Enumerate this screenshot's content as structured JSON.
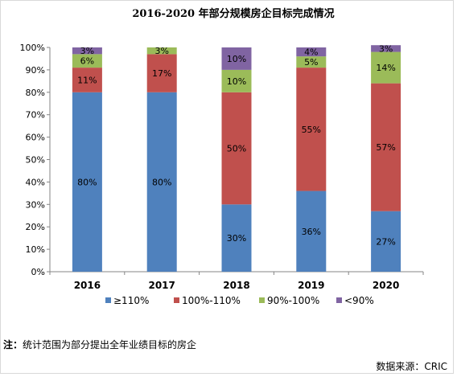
{
  "chart_data": {
    "type": "bar",
    "stacked": true,
    "percent": true,
    "title": "2016-2020 年部分规模房企目标完成情况",
    "categories": [
      "2016",
      "2017",
      "2018",
      "2019",
      "2020"
    ],
    "ylim": [
      0,
      100
    ],
    "yticks": [
      "0%",
      "10%",
      "20%",
      "30%",
      "40%",
      "50%",
      "60%",
      "70%",
      "80%",
      "90%",
      "100%"
    ],
    "series": [
      {
        "name": "≥110%",
        "color": "#4f81bd",
        "values": [
          80,
          80,
          30,
          36,
          27
        ]
      },
      {
        "name": "100%-110%",
        "color": "#c0504d",
        "values": [
          11,
          17,
          50,
          55,
          57
        ]
      },
      {
        "name": "90%-100%",
        "color": "#9bbb59",
        "values": [
          6,
          3,
          10,
          5,
          14
        ]
      },
      {
        "name": "<90%",
        "color": "#8064a2",
        "values": [
          3,
          0,
          10,
          4,
          3
        ]
      }
    ],
    "data_labels": [
      [
        "80%",
        "80%",
        "30%",
        "36%",
        "27%"
      ],
      [
        "11%",
        "17%",
        "50%",
        "55%",
        "57%"
      ],
      [
        "6%",
        "3%",
        "10%",
        "5%",
        "14%"
      ],
      [
        "3%",
        "",
        "10%",
        "4%",
        "3%"
      ]
    ],
    "legend_position": "bottom",
    "grid": false
  },
  "note": {
    "label": "注：",
    "text": "统计范围为部分提出全年业绩目标的房企"
  },
  "source": "数据来源：CRIC"
}
